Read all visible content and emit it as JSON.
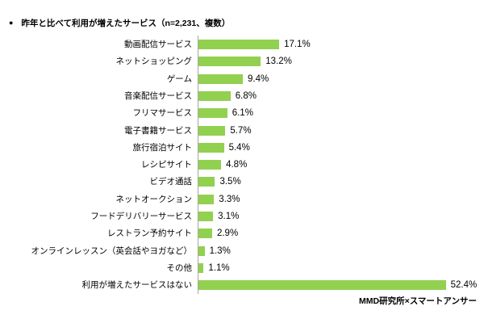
{
  "header": {
    "bullet": "●"
  },
  "colors": {
    "bar": "#92d050",
    "axis": "#a6a6a6"
  },
  "chart_data": {
    "type": "bar",
    "orientation": "horizontal",
    "title": "昨年と比べて利用が増えたサービス（n=2,231、複数）",
    "categories": [
      "動画配信サービス",
      "ネットショッピング",
      "ゲーム",
      "音楽配信サービス",
      "フリマサービス",
      "電子書籍サービス",
      "旅行宿泊サイト",
      "レシピサイト",
      "ビデオ通話",
      "ネットオークション",
      "フードデリバリーサービス",
      "レストラン予約サイト",
      "オンラインレッスン（英会話やヨガなど）",
      "その他",
      "利用が増えたサービスはない"
    ],
    "values": [
      17.1,
      13.2,
      9.4,
      6.8,
      6.1,
      5.7,
      5.4,
      4.8,
      3.5,
      3.3,
      3.1,
      2.9,
      1.3,
      1.1,
      52.4
    ],
    "value_suffix": "%",
    "xlim": [
      0,
      54
    ],
    "grid": false,
    "legend": false
  },
  "footer": {
    "source": "MMD研究所×スマートアンサー"
  }
}
